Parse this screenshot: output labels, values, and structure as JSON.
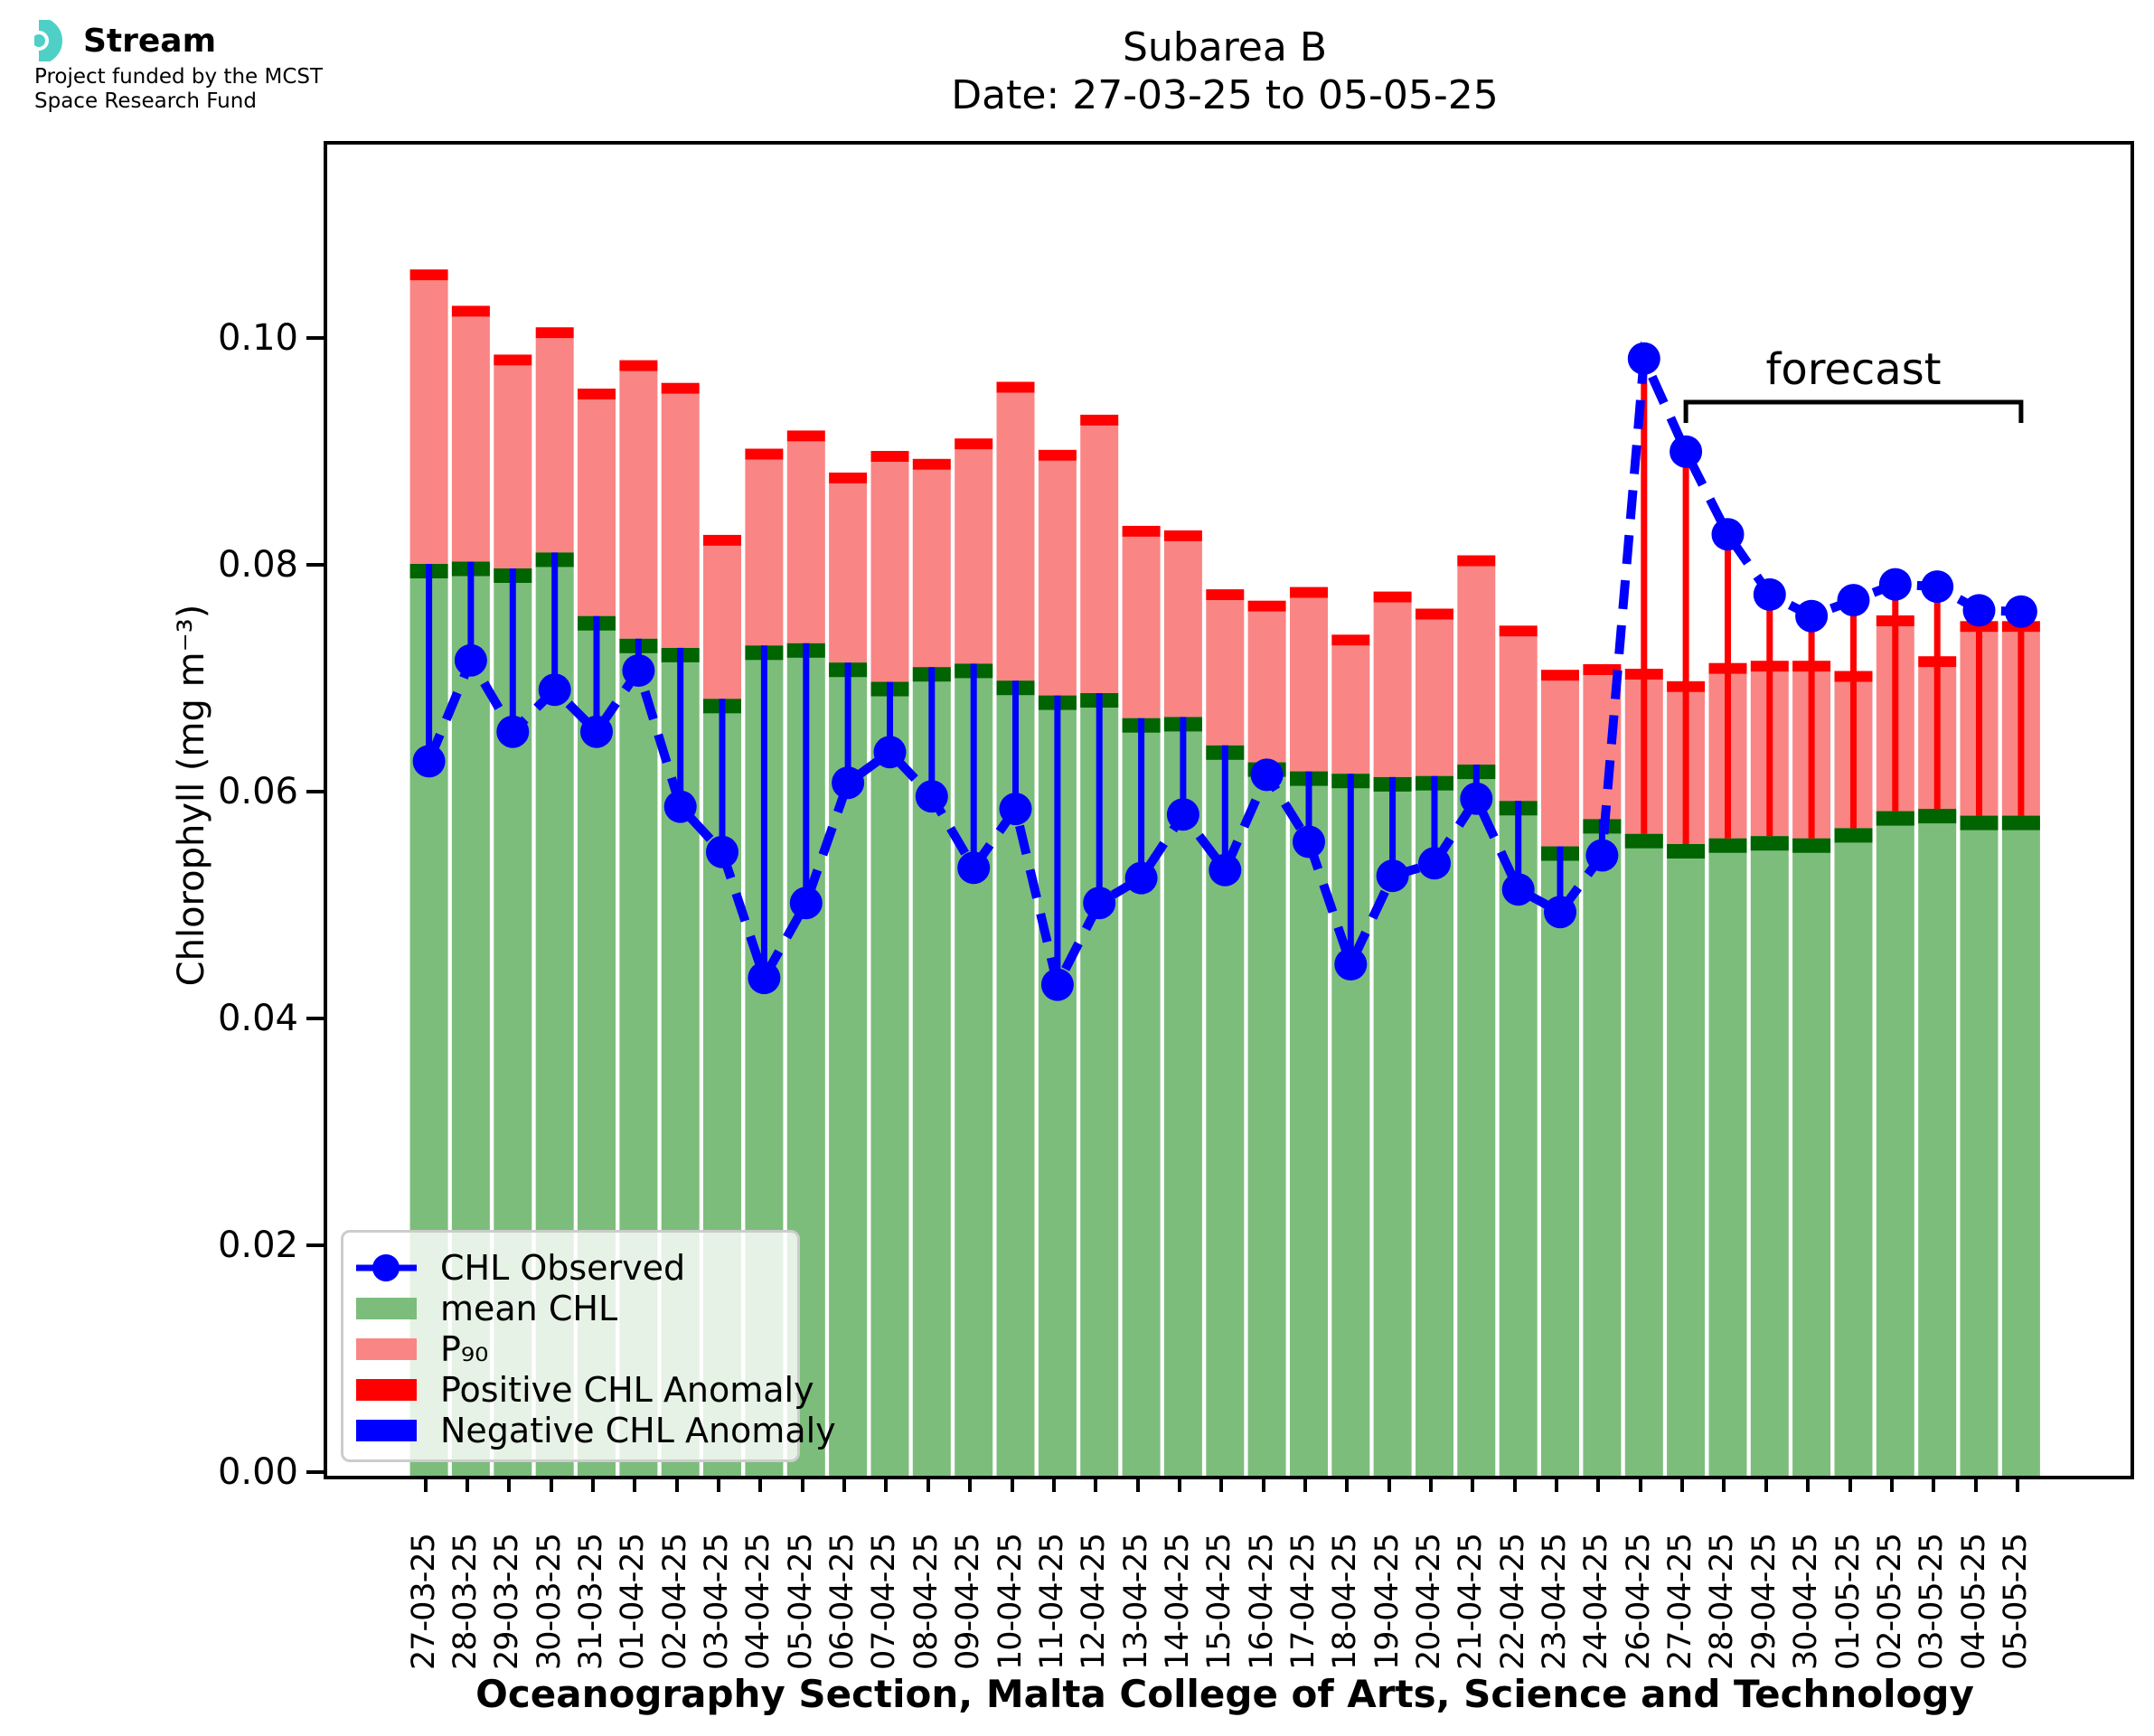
{
  "logo": {
    "brand": "Stream",
    "subtitle_line1": "Project funded by the MCST",
    "subtitle_line2": "Space Research Fund",
    "accent_color": "#4ed0c6"
  },
  "title": {
    "line1": "Subarea B",
    "line2": "Date: 27-03-25 to 05-05-25"
  },
  "axes": {
    "ylabel": "Chlorophyll (mg m⁻³)",
    "xlabel": "Oceanography Section, Malta College of Arts, Science and Technology",
    "yticks": [
      "0.00",
      "0.02",
      "0.04",
      "0.06",
      "0.08",
      "0.10"
    ]
  },
  "legend": {
    "items": [
      {
        "label": "CHL Observed",
        "type": "marker-line",
        "color": "#0000ff"
      },
      {
        "label": "mean CHL",
        "type": "patch",
        "color": "#7cbd7c"
      },
      {
        "label": "P₉₀",
        "type": "patch",
        "color": "#fa8585"
      },
      {
        "label": "Positive CHL Anomaly",
        "type": "patch",
        "color": "#ff0000"
      },
      {
        "label": "Negative CHL Anomaly",
        "type": "patch",
        "color": "#0000ff"
      }
    ]
  },
  "annotations": {
    "forecast_label": "forecast",
    "forecast_span": [
      "27-04-25",
      "05-05-25"
    ]
  },
  "chart_data": {
    "type": "bar+line",
    "title": "Subarea B",
    "subtitle": "Date: 27-03-25 to 05-05-25",
    "xlabel": "Oceanography Section, Malta College of Arts, Science and Technology",
    "ylabel": "Chlorophyll (mg m⁻³)",
    "ylim": [
      0,
      0.1173
    ],
    "grid": false,
    "legend_position": "lower-left",
    "categories": [
      "27-03-25",
      "28-03-25",
      "29-03-25",
      "30-03-25",
      "31-03-25",
      "01-04-25",
      "02-04-25",
      "03-04-25",
      "04-04-25",
      "05-04-25",
      "06-04-25",
      "07-04-25",
      "08-04-25",
      "09-04-25",
      "10-04-25",
      "11-04-25",
      "12-04-25",
      "13-04-25",
      "14-04-25",
      "15-04-25",
      "16-04-25",
      "17-04-25",
      "18-04-25",
      "19-04-25",
      "20-04-25",
      "21-04-25",
      "22-04-25",
      "23-04-25",
      "24-04-25",
      "26-04-25",
      "27-04-25",
      "28-04-25",
      "29-04-25",
      "30-04-25",
      "01-05-25",
      "02-05-25",
      "03-05-25",
      "04-05-25",
      "05-05-25"
    ],
    "series": [
      {
        "name": "mean CHL",
        "style": "bar",
        "color": "#7cbd7c",
        "cap_color": "#006400",
        "values": [
          0.0804,
          0.0806,
          0.08,
          0.0814,
          0.0758,
          0.0738,
          0.073,
          0.0685,
          0.0732,
          0.0734,
          0.0717,
          0.07,
          0.0713,
          0.0716,
          0.0701,
          0.0688,
          0.069,
          0.0668,
          0.0669,
          0.0644,
          0.0629,
          0.0621,
          0.0619,
          0.0616,
          0.0617,
          0.0627,
          0.0595,
          0.0555,
          0.0579,
          0.0566,
          0.0557,
          0.0562,
          0.0564,
          0.0562,
          0.0571,
          0.0586,
          0.0588,
          0.0582,
          0.0582
        ]
      },
      {
        "name": "P90",
        "style": "bar",
        "color": "#fa8585",
        "cap_color": "#ff0000",
        "values": [
          0.1054,
          0.1022,
          0.0979,
          0.1003,
          0.0949,
          0.0974,
          0.0954,
          0.082,
          0.0896,
          0.0912,
          0.0875,
          0.0894,
          0.0887,
          0.0905,
          0.0955,
          0.0895,
          0.0926,
          0.0828,
          0.0824,
          0.0772,
          0.0762,
          0.0774,
          0.0732,
          0.077,
          0.0755,
          0.0802,
          0.074,
          0.0701,
          0.0706,
          0.0702,
          0.0691,
          0.0707,
          0.0709,
          0.0709,
          0.07,
          0.0749,
          0.0713,
          0.0744,
          0.0744
        ]
      },
      {
        "name": "CHL Observed",
        "style": "dashed-line-markers",
        "color": "#0000ff",
        "values": [
          0.063,
          0.0719,
          0.0656,
          0.0693,
          0.0656,
          0.071,
          0.059,
          0.055,
          0.0439,
          0.0505,
          0.0611,
          0.0638,
          0.0599,
          0.0536,
          0.0588,
          0.0433,
          0.0505,
          0.0527,
          0.0583,
          0.0534,
          0.0618,
          0.0559,
          0.0451,
          0.0529,
          0.054,
          0.0597,
          0.0517,
          0.0497,
          0.0547,
          0.0985,
          0.0903,
          0.083,
          0.0777,
          0.0758,
          0.0772,
          0.0786,
          0.0784,
          0.0763,
          0.0762
        ]
      }
    ],
    "anomaly": {
      "positive_color": "#ff0000",
      "negative_color": "#0000ff",
      "note": "vertical line from mean CHL to CHL Observed for each day"
    },
    "forecast_dates": [
      "27-04-25",
      "28-04-25",
      "29-04-25",
      "30-04-25",
      "01-05-25",
      "02-05-25",
      "03-05-25",
      "04-05-25",
      "05-05-25"
    ]
  }
}
